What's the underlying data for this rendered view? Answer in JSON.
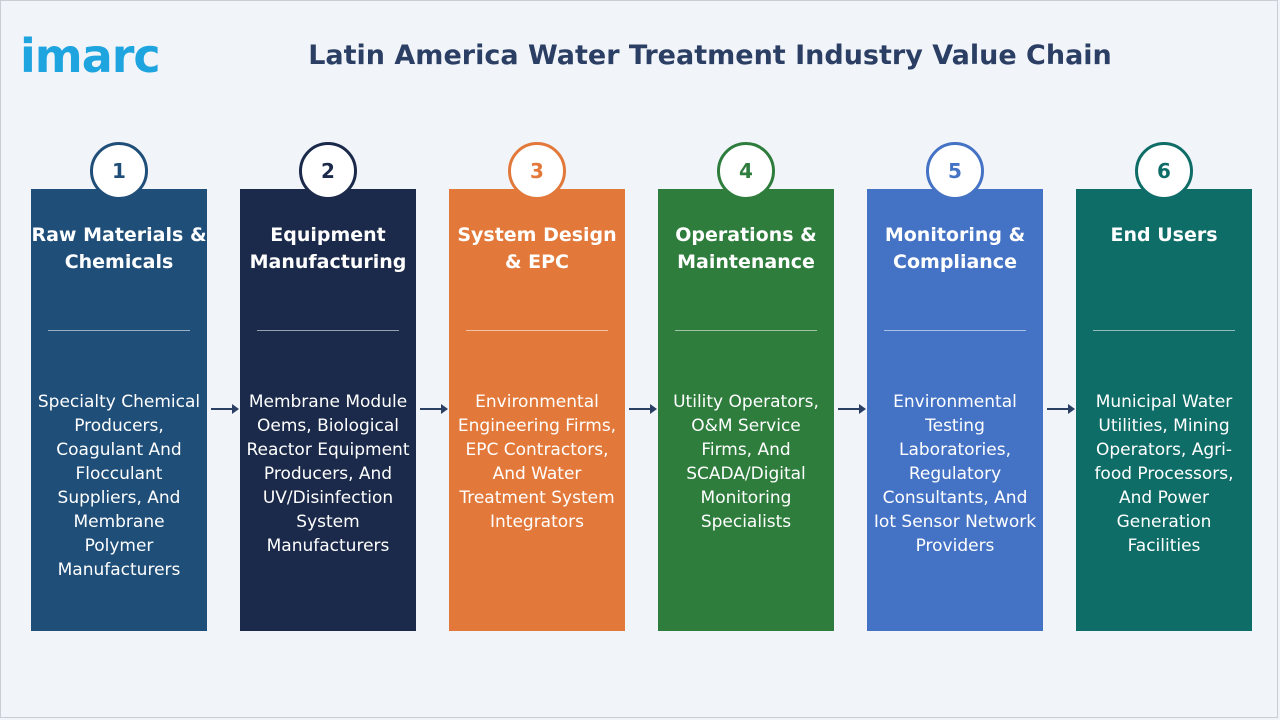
{
  "logo": {
    "text": "imarc",
    "color": "#1ea4df"
  },
  "title": "Latin America Water Treatment Industry Value Chain",
  "stages": [
    {
      "number": "1",
      "heading": "Raw Materials & Chemicals",
      "color": "#1f4e79",
      "body": "Specialty Chemical Producers, Coagulant And Flocculant Suppliers, And Membrane Polymer Manufacturers"
    },
    {
      "number": "2",
      "heading": "Equipment Manufacturing",
      "color": "#1b2a4a",
      "body": "Membrane Module Oems, Biological Reactor Equipment Producers, And UV/Disinfection System Manufacturers"
    },
    {
      "number": "3",
      "heading": "System Design & EPC",
      "color": "#e2793a",
      "body": "Environmental Engineering Firms, EPC Contractors, And Water Treatment System Integrators"
    },
    {
      "number": "4",
      "heading": "Operations & Maintenance",
      "color": "#2e7d3d",
      "body": "Utility Operators, O&M Service Firms, And SCADA/Digital Monitoring Specialists"
    },
    {
      "number": "5",
      "heading": "Monitoring & Compliance",
      "color": "#4472c4",
      "body": "Environmental Testing Laboratories, Regulatory Consultants, And Iot Sensor Network Providers"
    },
    {
      "number": "6",
      "heading": "End Users",
      "color": "#0f6d68",
      "body": "Municipal Water Utilities, Mining Operators, Agri-food Processors, And Power Generation Facilities"
    }
  ]
}
